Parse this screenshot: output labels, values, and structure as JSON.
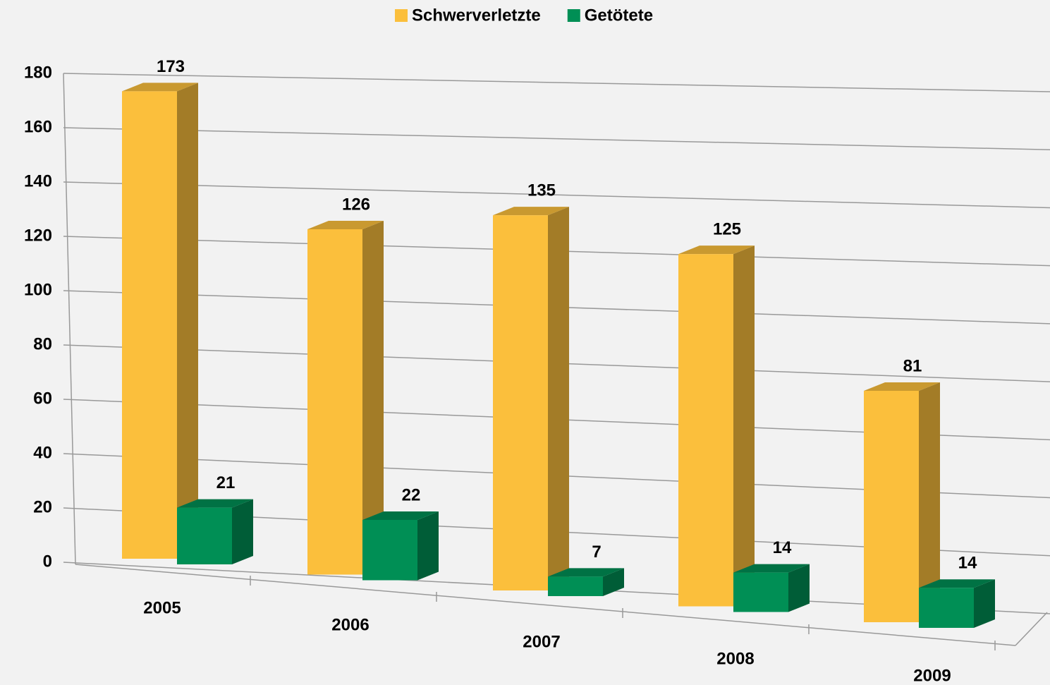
{
  "chart_data": {
    "type": "bar3d",
    "categories": [
      "2005",
      "2006",
      "2007",
      "2008",
      "2009"
    ],
    "series": [
      {
        "name": "Schwerverletzte",
        "color": "#fbbf3c",
        "values": [
          173,
          126,
          135,
          125,
          81
        ]
      },
      {
        "name": "Getötete",
        "color": "#008f55",
        "values": [
          21,
          22,
          7,
          14,
          14
        ]
      }
    ],
    "ylim": [
      0,
      180
    ],
    "yticks": [
      0,
      20,
      40,
      60,
      80,
      100,
      120,
      140,
      160,
      180
    ],
    "grid": true,
    "legend": "top"
  }
}
